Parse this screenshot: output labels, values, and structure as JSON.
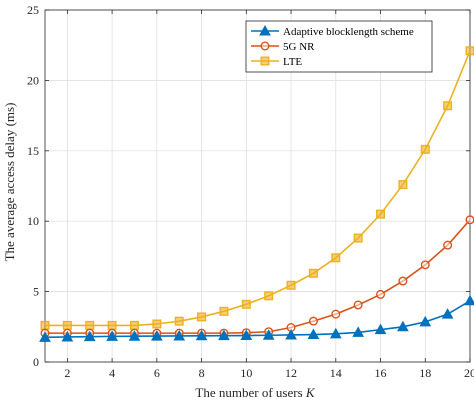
{
  "chart_data": {
    "type": "line",
    "xlabel": "The number of users ",
    "xlabel_var": "K",
    "ylabel": "The average access delay (ms)",
    "xlim": [
      1,
      20
    ],
    "ylim": [
      0,
      25
    ],
    "xticks": [
      2,
      4,
      6,
      8,
      10,
      12,
      14,
      16,
      18,
      20
    ],
    "yticks": [
      0,
      5,
      10,
      15,
      20,
      25
    ],
    "grid": true,
    "legend_position": "top-right",
    "x": [
      1,
      2,
      3,
      4,
      5,
      6,
      7,
      8,
      9,
      10,
      11,
      12,
      13,
      14,
      15,
      16,
      17,
      18,
      19,
      20
    ],
    "series": [
      {
        "name": "Adaptive blocklength scheme",
        "color": "#0072BD",
        "marker": "triangle",
        "values": [
          1.75,
          1.78,
          1.8,
          1.82,
          1.83,
          1.84,
          1.85,
          1.86,
          1.87,
          1.88,
          1.9,
          1.92,
          1.95,
          2.0,
          2.1,
          2.3,
          2.5,
          2.85,
          3.4,
          4.35
        ]
      },
      {
        "name": "5G NR",
        "color": "#D95319",
        "marker": "circle",
        "values": [
          2.05,
          2.05,
          2.05,
          2.05,
          2.05,
          2.05,
          2.05,
          2.05,
          2.05,
          2.08,
          2.15,
          2.45,
          2.9,
          3.4,
          4.05,
          4.8,
          5.75,
          6.9,
          8.3,
          10.1
        ]
      },
      {
        "name": "LTE",
        "color": "#EDB120",
        "marker": "square",
        "values": [
          2.6,
          2.6,
          2.6,
          2.6,
          2.6,
          2.7,
          2.9,
          3.2,
          3.6,
          4.1,
          4.7,
          5.45,
          6.3,
          7.4,
          8.8,
          10.5,
          12.6,
          15.1,
          18.2,
          22.1
        ]
      }
    ]
  }
}
